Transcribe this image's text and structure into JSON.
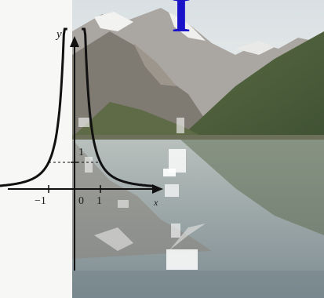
{
  "overlay_glyph": "I",
  "graph": {
    "axis_x_label": "",
    "axis_y_label": "y",
    "tick_minus_one": "−1",
    "tick_zero": "0",
    "tick_one_x": "1",
    "tick_one_y": "1",
    "tick_x_end": "x"
  },
  "colors": {
    "curve": "#111111",
    "axis": "#111111",
    "glyph": "#1a13c8",
    "sky": "#dde3e6",
    "mountain": "#8d8a86",
    "forest": "#4f5f3a",
    "water": "#9ea8aa"
  }
}
